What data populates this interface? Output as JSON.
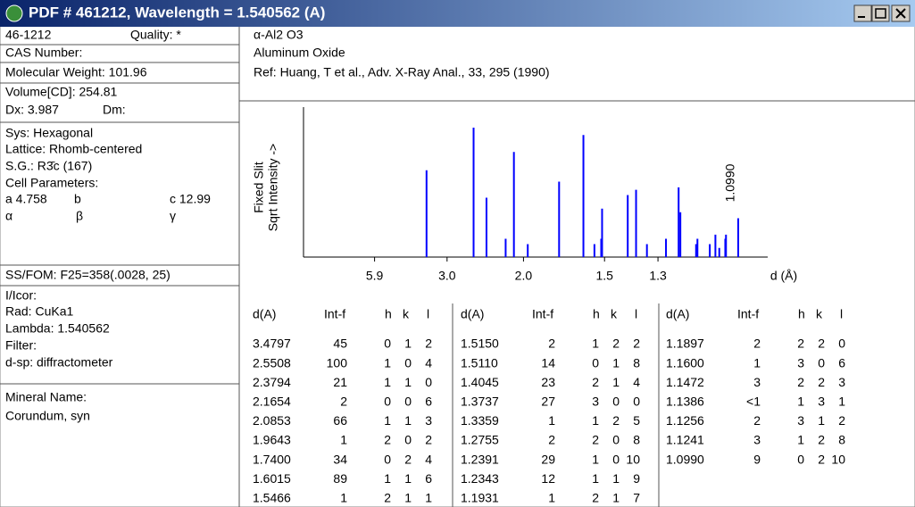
{
  "window": {
    "title": "PDF # 461212, Wavelength = 1.540562 (A)"
  },
  "card": {
    "pdf_number": "46-1212",
    "quality": "Quality: *",
    "cas": "CAS Number:",
    "molecular_weight": "Molecular Weight:  101.96",
    "volume": "Volume[CD]:  254.81",
    "dx": "Dx: 3.987",
    "dm": "Dm:",
    "system": "Sys: Hexagonal",
    "lattice": "Lattice: Rhomb-centered",
    "space_group": "S.G.: R3̄c (167)",
    "cell_parameters": "Cell Parameters:",
    "a": "a 4.758",
    "b": "b",
    "c": "c 12.99",
    "alpha": "α",
    "beta": "β",
    "gamma": "γ",
    "ss_fom": "SS/FOM: F25=358(.0028, 25)",
    "i_icor": "I/Icor:",
    "radiation": "Rad: CuKa1",
    "lambda": "Lambda: 1.540562",
    "filter": "Filter:",
    "d_sp": "d-sp: diffractometer",
    "mineral_label": "Mineral Name:",
    "mineral_name": "Corundum, syn",
    "formula": "α-Al2 O3",
    "name": "Aluminum Oxide",
    "reference": "Ref: Huang, T et al., Adv. X-Ray Anal., 33, 295 (1990)"
  },
  "chart_data": {
    "type": "stick",
    "x": [
      3.4797,
      2.5508,
      2.3794,
      2.1654,
      2.0853,
      1.9643,
      1.74,
      1.6015,
      1.5466,
      1.515,
      1.511,
      1.4045,
      1.3737,
      1.3359,
      1.2755,
      1.2391,
      1.2343,
      1.1931,
      1.1897,
      1.16,
      1.1472,
      1.1386,
      1.1256,
      1.1241,
      1.099
    ],
    "values": [
      45,
      100,
      21,
      2,
      66,
      1,
      34,
      89,
      1,
      2,
      14,
      23,
      27,
      1,
      2,
      29,
      12,
      1,
      2,
      1,
      3,
      0.5,
      2,
      3,
      9
    ],
    "color": "#0000ff",
    "wavelength": 1.540562,
    "two_theta_lim": [
      0,
      95
    ],
    "ylim": [
      0,
      100
    ],
    "yscale": "sqrt",
    "xticks": [
      5.9,
      {
        "value": 3,
        "label": "3.0"
      },
      {
        "value": 2,
        "label": "2.0"
      },
      1.5,
      1.3
    ],
    "xlabel": "d (Å)",
    "ylabel": [
      "Fixed   Slit",
      "Sqrt  Intensity  ->"
    ],
    "annotation": "1.0990"
  },
  "table": {
    "columns": [
      "d(A)",
      "Int-f",
      "h",
      "k",
      "l"
    ],
    "rows": [
      [
        "3.4797",
        "45",
        "0",
        "1",
        "2"
      ],
      [
        "2.5508",
        "100",
        "1",
        "0",
        "4"
      ],
      [
        "2.3794",
        "21",
        "1",
        "1",
        "0"
      ],
      [
        "2.1654",
        "2",
        "0",
        "0",
        "6"
      ],
      [
        "2.0853",
        "66",
        "1",
        "1",
        "3"
      ],
      [
        "1.9643",
        "1",
        "2",
        "0",
        "2"
      ],
      [
        "1.7400",
        "34",
        "0",
        "2",
        "4"
      ],
      [
        "1.6015",
        "89",
        "1",
        "1",
        "6"
      ],
      [
        "1.5466",
        "1",
        "2",
        "1",
        "1"
      ],
      [
        "1.5150",
        "2",
        "1",
        "2",
        "2"
      ],
      [
        "1.5110",
        "14",
        "0",
        "1",
        "8"
      ],
      [
        "1.4045",
        "23",
        "2",
        "1",
        "4"
      ],
      [
        "1.3737",
        "27",
        "3",
        "0",
        "0"
      ],
      [
        "1.3359",
        "1",
        "1",
        "2",
        "5"
      ],
      [
        "1.2755",
        "2",
        "2",
        "0",
        "8"
      ],
      [
        "1.2391",
        "29",
        "1",
        "0",
        "10"
      ],
      [
        "1.2343",
        "12",
        "1",
        "1",
        "9"
      ],
      [
        "1.1931",
        "1",
        "2",
        "1",
        "7"
      ],
      [
        "1.1897",
        "2",
        "2",
        "2",
        "0"
      ],
      [
        "1.1600",
        "1",
        "3",
        "0",
        "6"
      ],
      [
        "1.1472",
        "3",
        "2",
        "2",
        "3"
      ],
      [
        "1.1386",
        "<1",
        "1",
        "3",
        "1"
      ],
      [
        "1.1256",
        "2",
        "3",
        "1",
        "2"
      ],
      [
        "1.1241",
        "3",
        "1",
        "2",
        "8"
      ],
      [
        "1.0990",
        "9",
        "0",
        "2",
        "10"
      ]
    ]
  }
}
